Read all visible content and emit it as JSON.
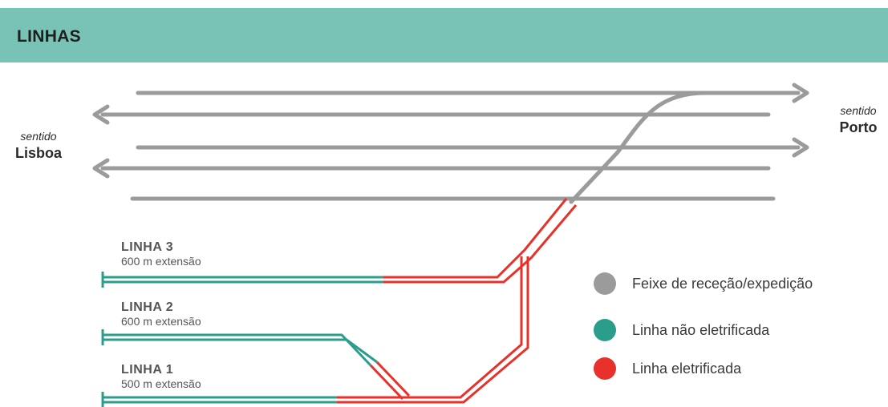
{
  "header": {
    "title": "LINHAS"
  },
  "directions": {
    "left": {
      "small": "sentido",
      "big": "Lisboa"
    },
    "right": {
      "small": "sentido",
      "big": "Porto"
    }
  },
  "lines": [
    {
      "name": "LINHA 3",
      "length": "600 m extensão"
    },
    {
      "name": "LINHA 2",
      "length": "600 m extensão"
    },
    {
      "name": "LINHA 1",
      "length": "500 m extensão"
    }
  ],
  "legend": [
    {
      "label": "Feixe de receção/expedição",
      "color": "#9b9b9b"
    },
    {
      "label": "Linha não eletrificada",
      "color": "#2a9d8b"
    },
    {
      "label": "Linha eletrificada",
      "color": "#e8312a"
    }
  ],
  "colors": {
    "grey_track": "#9b9b9b",
    "green_track": "#2a9d8b",
    "red_track": "#e8312a",
    "header_bg": "#78c3b5"
  }
}
